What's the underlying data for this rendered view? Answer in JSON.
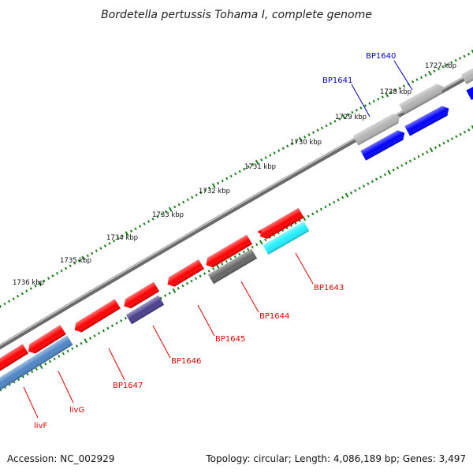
{
  "title": "Bordetella pertussis Tohama I, complete genome",
  "footer": {
    "accession": "Accession: NC_002929",
    "summary": "Topology: circular; Length: 4,086,189 bp; Genes: 3,497"
  },
  "colors": {
    "background": "#ffffff",
    "backbone": "#808080",
    "tick": "#1a7f1a",
    "label_red": "#e00000",
    "label_blue": "#0000cc",
    "gene_red": "#ff0000",
    "gene_blue": "#0000ff",
    "gene_lightgray": "#b4b4b4",
    "gene_gray": "#666666",
    "gene_cyan": "#22f0ff",
    "gene_steelblue": "#4f86c6",
    "gene_slate": "#4a3f8f"
  },
  "kbp_labels": [
    "1727 kbp",
    "1728 kbp",
    "1729 kbp",
    "1730 kbp",
    "1731 kbp",
    "1732 kbp",
    "1733 kbp",
    "1734 kbp",
    "1735 kbp",
    "1736 kbp"
  ],
  "gene_labels": [
    {
      "text": "BP1640",
      "color": "blue"
    },
    {
      "text": "BP1641",
      "color": "blue"
    },
    {
      "text": "BP1643",
      "color": "red"
    },
    {
      "text": "BP1644",
      "color": "red"
    },
    {
      "text": "BP1645",
      "color": "red"
    },
    {
      "text": "BP1646",
      "color": "red"
    },
    {
      "text": "BP1647",
      "color": "red"
    },
    {
      "text": "livG",
      "color": "red"
    },
    {
      "text": "livF",
      "color": "red"
    }
  ]
}
